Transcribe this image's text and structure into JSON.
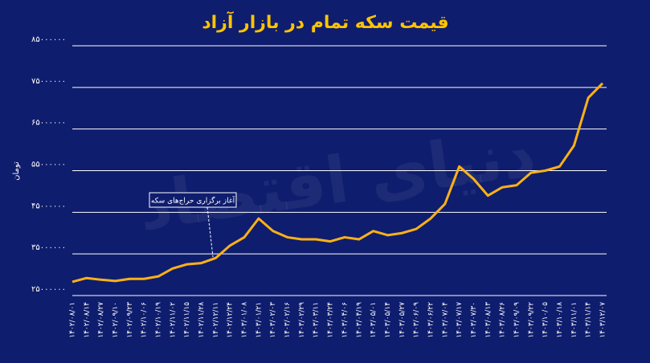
{
  "chart_data": {
    "type": "line",
    "title": "قیمت سکه تمام در بازار آزاد",
    "y_label": "تومان",
    "annotation": "آغاز برگزاری حراج‌های سکه",
    "watermark": "دنیای اقتصاد",
    "categories": [
      "۱۴۰۲/۰۸/۰۱",
      "۱۴۰۲/۰۸/۱۴",
      "۱۴۰۲/۰۸/۲۷",
      "۱۴۰۲/۰۹/۱۰",
      "۱۴۰۲/۰۹/۲۳",
      "۱۴۰۲/۱۰/۰۶",
      "۱۴۰۲/۱۰/۱۹",
      "۱۴۰۲/۱۱/۰۲",
      "۱۴۰۲/۱۱/۱۵",
      "۱۴۰۲/۱۱/۲۸",
      "۱۴۰۲/۱۲/۱۱",
      "۱۴۰۲/۱۲/۲۴",
      "۱۴۰۳/۰۱/۰۸",
      "۱۴۰۳/۰۱/۲۱",
      "۱۴۰۳/۰۲/۰۳",
      "۱۴۰۳/۰۲/۱۶",
      "۱۴۰۳/۰۲/۲۹",
      "۱۴۰۳/۰۳/۱۱",
      "۱۴۰۳/۰۳/۲۴",
      "۱۴۰۳/۰۴/۰۶",
      "۱۴۰۳/۰۴/۱۹",
      "۱۴۰۳/۰۵/۰۱",
      "۱۴۰۳/۰۵/۱۴",
      "۱۴۰۳/۰۵/۲۷",
      "۱۴۰۳/۰۶/۰۹",
      "۱۴۰۳/۰۶/۲۲",
      "۱۴۰۳/۰۷/۰۴",
      "۱۴۰۳/۰۷/۱۷",
      "۱۴۰۳/۰۷/۳۰",
      "۱۴۰۳/۰۸/۱۳",
      "۱۴۰۳/۰۸/۲۶",
      "۱۴۰۳/۰۹/۰۹",
      "۱۴۰۳/۰۹/۲۲",
      "۱۴۰۳/۱۰/۰۵",
      "۱۴۰۳/۱۰/۱۸",
      "۱۴۰۳/۱۱/۰۱",
      "۱۴۰۳/۱۱/۱۴",
      "۱۴۰۳/۱۲/۰۷"
    ],
    "values": [
      28300000,
      29200000,
      28800000,
      28500000,
      29000000,
      29000000,
      29600000,
      31500000,
      32500000,
      32800000,
      34000000,
      37000000,
      39000000,
      43500000,
      40500000,
      39000000,
      38500000,
      38500000,
      38000000,
      39000000,
      38500000,
      40500000,
      39500000,
      40000000,
      41000000,
      43500000,
      47000000,
      56000000,
      53000000,
      49000000,
      51000000,
      51500000,
      54500000,
      55000000,
      56000000,
      61000000,
      72500000,
      76000000
    ],
    "color": "#fbb117",
    "ylim": [
      25000000,
      85000000
    ],
    "yticks": [
      {
        "value": 25000000,
        "label": "۲۵۰۰۰۰۰۰"
      },
      {
        "value": 35000000,
        "label": "۳۵۰۰۰۰۰۰"
      },
      {
        "value": 45000000,
        "label": "۴۵۰۰۰۰۰۰"
      },
      {
        "value": 55000000,
        "label": "۵۵۰۰۰۰۰۰"
      },
      {
        "value": 65000000,
        "label": "۶۵۰۰۰۰۰۰"
      },
      {
        "value": 75000000,
        "label": "۷۵۰۰۰۰۰۰"
      },
      {
        "value": 85000000,
        "label": "۸۵۰۰۰۰۰۰"
      }
    ],
    "grid": true
  }
}
